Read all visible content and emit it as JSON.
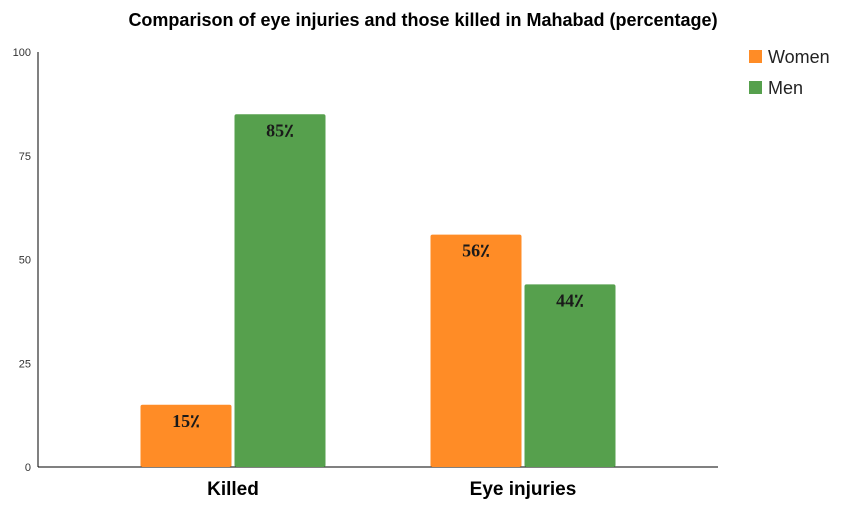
{
  "chart_data": {
    "type": "bar",
    "title": "Comparison of eye injuries and those killed in Mahabad (percentage)",
    "xlabel": "",
    "ylabel": "",
    "categories": [
      "Killed",
      "Eye injuries"
    ],
    "series": [
      {
        "name": "Women",
        "color": "#ff8c26",
        "values": [
          15,
          56
        ],
        "data_labels": [
          "15٪",
          "56٪"
        ]
      },
      {
        "name": "Men",
        "color": "#56a04d",
        "values": [
          85,
          44
        ],
        "data_labels": [
          "85٪",
          "44٪"
        ]
      }
    ],
    "ylim": [
      0,
      100
    ],
    "yticks": [
      "0",
      "25",
      "50",
      "75",
      "100"
    ],
    "grid": false,
    "legend_position": "top-right"
  }
}
